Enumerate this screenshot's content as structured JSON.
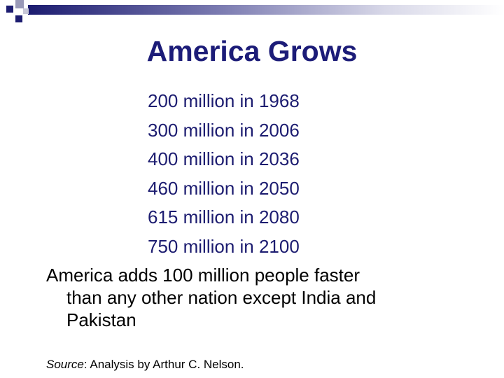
{
  "header": {
    "title": "America Grows"
  },
  "milestones": [
    "200 million in 1968",
    "300 million in 2006",
    "400 million in 2036",
    "460 million in 2050",
    "615 million in 2080",
    "750 million in 2100"
  ],
  "paragraph": [
    "America adds 100 million people faster",
    "than any other nation except India and",
    "Pakistan"
  ],
  "source": {
    "label": "Source",
    "text": ": Analysis by Arthur C. Nelson."
  }
}
